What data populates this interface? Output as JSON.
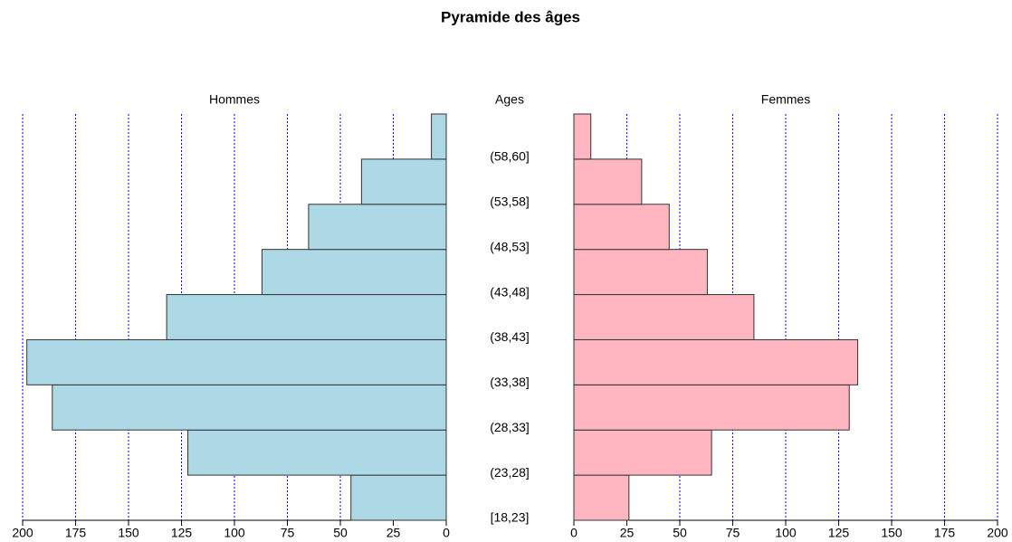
{
  "chart_data": {
    "type": "pyramid",
    "title": "Pyramide des âges",
    "center_label": "Ages",
    "categories": [
      "[18,23]",
      "(23,28]",
      "(28,33]",
      "(33,38]",
      "(38,43]",
      "(43,48]",
      "(48,53]",
      "(53,58]",
      "(58,60]"
    ],
    "series": [
      {
        "name": "Hommes",
        "color": "#add8e6",
        "values": [
          45,
          122,
          186,
          198,
          132,
          87,
          65,
          40,
          7
        ]
      },
      {
        "name": "Femmes",
        "color": "#ffb6c1",
        "values": [
          26,
          65,
          130,
          134,
          85,
          63,
          45,
          32,
          8
        ]
      }
    ],
    "xlim": [
      0,
      200
    ],
    "xticks": [
      0,
      25,
      50,
      75,
      100,
      125,
      150,
      175,
      200
    ],
    "grid": true,
    "grid_color": "#0000ff"
  }
}
